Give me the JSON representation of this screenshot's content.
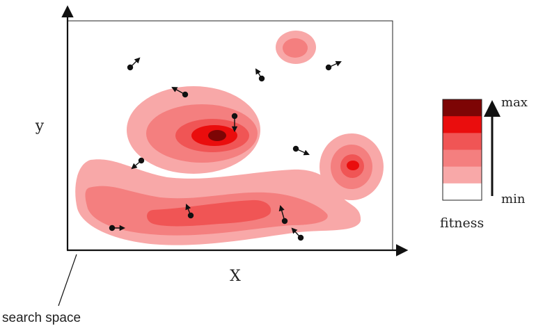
{
  "labels": {
    "y_axis": "y",
    "x_axis": "X",
    "search_space": "search space",
    "legend_max": "max",
    "legend_min": "min",
    "legend_title": "fitness"
  },
  "colors": {
    "level_0": "#ffffff",
    "level_1": "#f8a8a8",
    "level_2": "#f47f7f",
    "level_3": "#f05555",
    "level_4": "#ea0d0d",
    "level_5": "#7d0505"
  },
  "legend_levels": [
    "level_5",
    "level_4",
    "level_3",
    "level_2",
    "level_1",
    "level_0"
  ],
  "icons": {
    "particle": "particle-dot-icon",
    "velocity": "velocity-arrow-icon"
  }
}
